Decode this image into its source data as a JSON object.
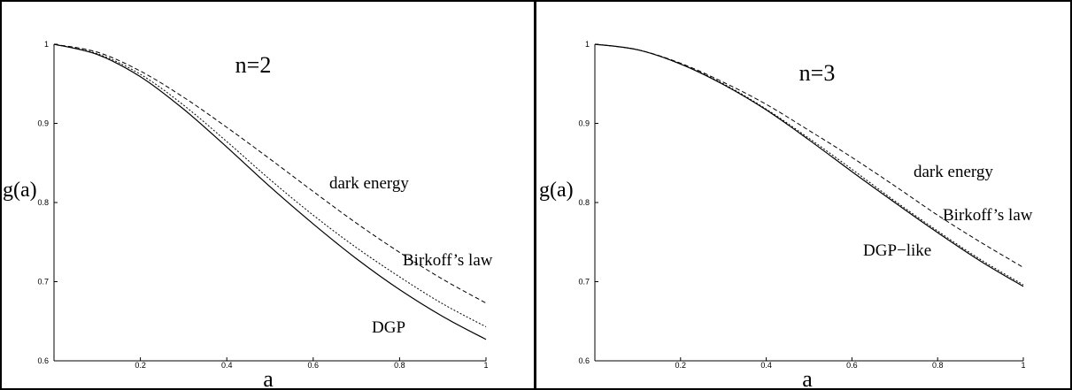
{
  "chart_data": [
    {
      "type": "line",
      "title": "n=2",
      "xlabel": "a",
      "ylabel": "g(a)",
      "xlim": [
        0,
        1
      ],
      "ylim": [
        0.6,
        1
      ],
      "xticks": [
        "0.2",
        "0.4",
        "0.6",
        "0.8",
        "1"
      ],
      "yticks": [
        "0.6",
        "0.7",
        "0.8",
        "0.9",
        "1"
      ],
      "grid": false,
      "series": [
        {
          "name": "dark energy",
          "dash": "dashed",
          "x": [
            0,
            0.1,
            0.2,
            0.3,
            0.4,
            0.5,
            0.6,
            0.7,
            0.8,
            0.9,
            1.0
          ],
          "y": [
            1.0,
            0.99,
            0.966,
            0.933,
            0.895,
            0.855,
            0.814,
            0.774,
            0.737,
            0.703,
            0.673
          ]
        },
        {
          "name": "Birkoff's law",
          "dash": "dotted",
          "x": [
            0,
            0.1,
            0.2,
            0.3,
            0.4,
            0.5,
            0.6,
            0.7,
            0.8,
            0.9,
            1.0
          ],
          "y": [
            1.0,
            0.988,
            0.962,
            0.923,
            0.877,
            0.829,
            0.784,
            0.743,
            0.706,
            0.672,
            0.643
          ]
        },
        {
          "name": "DGP",
          "dash": "solid",
          "x": [
            0,
            0.1,
            0.2,
            0.3,
            0.4,
            0.5,
            0.6,
            0.7,
            0.8,
            0.9,
            1.0
          ],
          "y": [
            1.0,
            0.987,
            0.959,
            0.918,
            0.87,
            0.82,
            0.773,
            0.729,
            0.69,
            0.656,
            0.627
          ]
        }
      ],
      "annotations": [
        "n=2",
        "dark energy",
        "Birkoff’s law",
        "DGP"
      ]
    },
    {
      "type": "line",
      "title": "n=3",
      "xlabel": "a",
      "ylabel": "g(a)",
      "xlim": [
        0,
        1
      ],
      "ylim": [
        0.6,
        1
      ],
      "xticks": [
        "0.2",
        "0.4",
        "0.6",
        "0.8",
        "1"
      ],
      "yticks": [
        "0.6",
        "0.7",
        "0.8",
        "0.9",
        "1"
      ],
      "grid": false,
      "series": [
        {
          "name": "dark energy",
          "dash": "dashed",
          "x": [
            0,
            0.1,
            0.2,
            0.3,
            0.4,
            0.5,
            0.6,
            0.7,
            0.8,
            0.9,
            1.0
          ],
          "y": [
            1.0,
            0.993,
            0.976,
            0.952,
            0.924,
            0.891,
            0.857,
            0.821,
            0.784,
            0.75,
            0.718
          ]
        },
        {
          "name": "Birkoff's law",
          "dash": "dotted",
          "x": [
            0,
            0.1,
            0.2,
            0.3,
            0.4,
            0.5,
            0.6,
            0.7,
            0.8,
            0.9,
            1.0
          ],
          "y": [
            1.0,
            0.993,
            0.975,
            0.95,
            0.918,
            0.881,
            0.842,
            0.802,
            0.764,
            0.728,
            0.696
          ]
        },
        {
          "name": "DGP-like",
          "dash": "solid",
          "x": [
            0,
            0.1,
            0.2,
            0.3,
            0.4,
            0.5,
            0.6,
            0.7,
            0.8,
            0.9,
            1.0
          ],
          "y": [
            1.0,
            0.993,
            0.975,
            0.949,
            0.917,
            0.879,
            0.839,
            0.8,
            0.762,
            0.726,
            0.694
          ]
        }
      ],
      "annotations": [
        "n=3",
        "dark energy",
        "Birkoff’s law",
        "DGP−like"
      ]
    }
  ]
}
